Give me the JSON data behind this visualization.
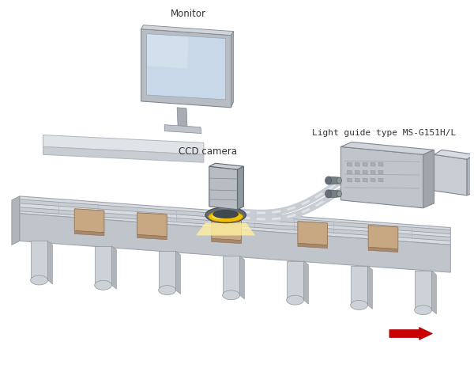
{
  "monitor_label": "Monitor",
  "camera_label": "CCD camera",
  "light_guide_label": "Light guide type MS-G151H/L",
  "arrow_color": "#cc0000",
  "conveyor_top": "#d8dce2",
  "conveyor_front": "#c0c5cb",
  "conveyor_side": "#b0b5bb",
  "rail_top": "#c8cdd3",
  "rail_edge": "#a0a5ab",
  "leg_color": "#cdd2d8",
  "leg_side": "#b0b5bb",
  "item_top": "#c8a882",
  "item_side": "#a8886a",
  "monitor_frame": "#b8bdc3",
  "monitor_screen": "#c8d8e8",
  "monitor_screen_hi": "#dce8f4",
  "monitor_stand": "#a8adb3",
  "camera_front": "#b8bdc3",
  "camera_side": "#9098a0",
  "camera_top": "#ccd1d7",
  "ring_dark": "#606870",
  "ring_yellow": "#f0c000",
  "ring_glow": "#ffe060",
  "device_front": "#c0c5cb",
  "device_top": "#d0d5db",
  "device_side": "#a0a5ab",
  "cable_base": "#c8cdd3",
  "cable_hi": "#e0e5eb",
  "desk_top": "#e0e4e8",
  "desk_side": "#c8cdd3"
}
